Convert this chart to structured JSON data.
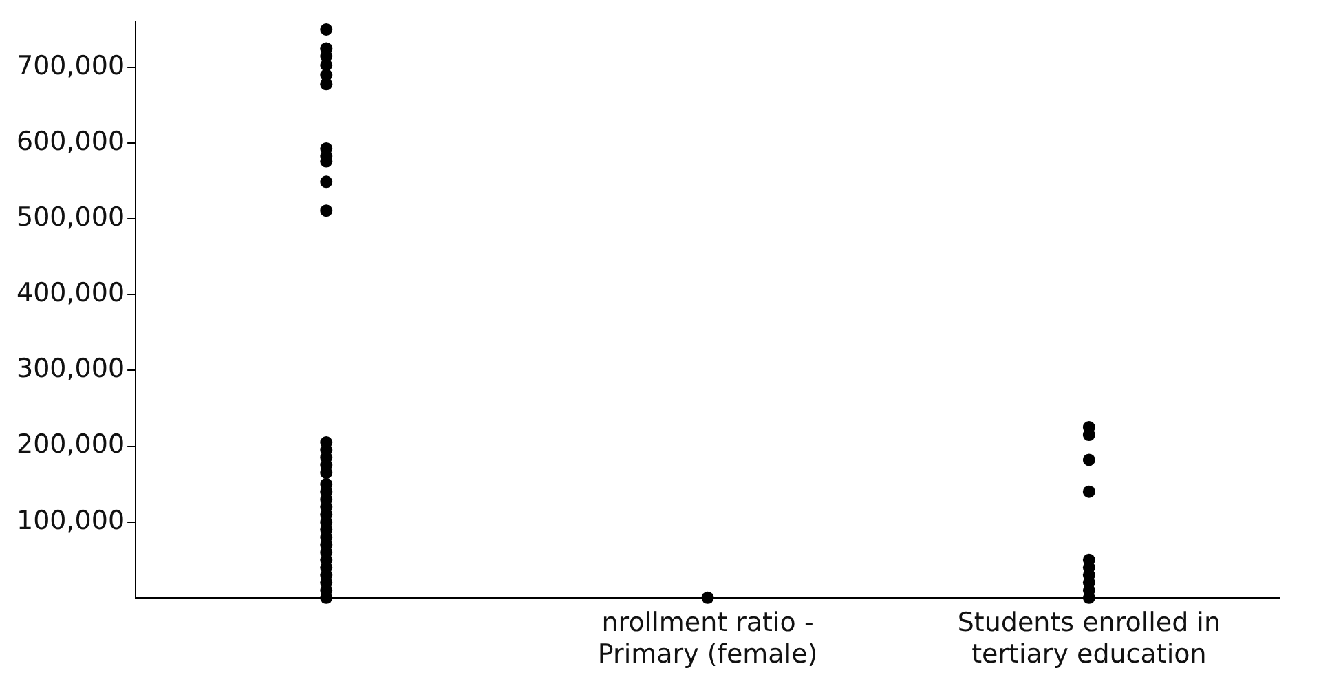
{
  "chart_data": {
    "type": "scatter",
    "categories": [
      null,
      "nrollment ratio - Primary (female)",
      "Students enrolled in tertiary education"
    ],
    "ylim": [
      0,
      760000
    ],
    "yticks": [
      {
        "value": 100000,
        "label": "100,000"
      },
      {
        "value": 200000,
        "label": "200,000"
      },
      {
        "value": 300000,
        "label": "300,000"
      },
      {
        "value": 400000,
        "label": "400,000"
      },
      {
        "value": 500000,
        "label": "500,000"
      },
      {
        "value": 600000,
        "label": "600,000"
      },
      {
        "value": 700000,
        "label": "700,000"
      }
    ],
    "grid": false,
    "legend": false,
    "marker": "circle",
    "series": [
      {
        "color": "#000000",
        "values": [
          750000,
          0,
          225000
        ]
      },
      {
        "color": "#000000",
        "values": [
          725000,
          null,
          215000
        ]
      },
      {
        "color": "#000000",
        "values": [
          715000,
          null,
          182000
        ]
      },
      {
        "color": "#000000",
        "values": [
          703000,
          null,
          140000
        ]
      },
      {
        "color": "#000000",
        "values": [
          690000,
          null,
          50000
        ]
      },
      {
        "color": "#000000",
        "values": [
          678000,
          null,
          40000
        ]
      },
      {
        "color": "#000000",
        "values": [
          593000,
          null,
          30000
        ]
      },
      {
        "color": "#000000",
        "values": [
          583000,
          null,
          20000
        ]
      },
      {
        "color": "#000000",
        "values": [
          576000,
          null,
          10000
        ]
      },
      {
        "color": "#000000",
        "values": [
          549000,
          null,
          0
        ]
      },
      {
        "color": "#000000",
        "values": [
          511000,
          null,
          null
        ]
      },
      {
        "color": "#000000",
        "values": [
          205000,
          null,
          null
        ]
      },
      {
        "color": "#000000",
        "values": [
          195000,
          null,
          null
        ]
      },
      {
        "color": "#000000",
        "values": [
          185000,
          null,
          null
        ]
      },
      {
        "color": "#000000",
        "values": [
          175000,
          null,
          null
        ]
      },
      {
        "color": "#000000",
        "values": [
          165000,
          null,
          null
        ]
      },
      {
        "color": "#000000",
        "values": [
          150000,
          null,
          null
        ]
      },
      {
        "color": "#000000",
        "values": [
          140000,
          null,
          null
        ]
      },
      {
        "color": "#000000",
        "values": [
          130000,
          null,
          null
        ]
      },
      {
        "color": "#000000",
        "values": [
          120000,
          null,
          null
        ]
      },
      {
        "color": "#000000",
        "values": [
          110000,
          null,
          null
        ]
      },
      {
        "color": "#000000",
        "values": [
          100000,
          null,
          null
        ]
      },
      {
        "color": "#000000",
        "values": [
          90000,
          null,
          null
        ]
      },
      {
        "color": "#000000",
        "values": [
          80000,
          null,
          null
        ]
      },
      {
        "color": "#000000",
        "values": [
          70000,
          null,
          null
        ]
      },
      {
        "color": "#000000",
        "values": [
          60000,
          null,
          null
        ]
      },
      {
        "color": "#000000",
        "values": [
          50000,
          null,
          null
        ]
      },
      {
        "color": "#000000",
        "values": [
          40000,
          null,
          null
        ]
      },
      {
        "color": "#000000",
        "values": [
          30000,
          null,
          null
        ]
      },
      {
        "color": "#000000",
        "values": [
          20000,
          null,
          null
        ]
      },
      {
        "color": "#000000",
        "values": [
          10000,
          null,
          null
        ]
      },
      {
        "color": "#000000",
        "values": [
          0,
          null,
          null
        ]
      }
    ]
  }
}
